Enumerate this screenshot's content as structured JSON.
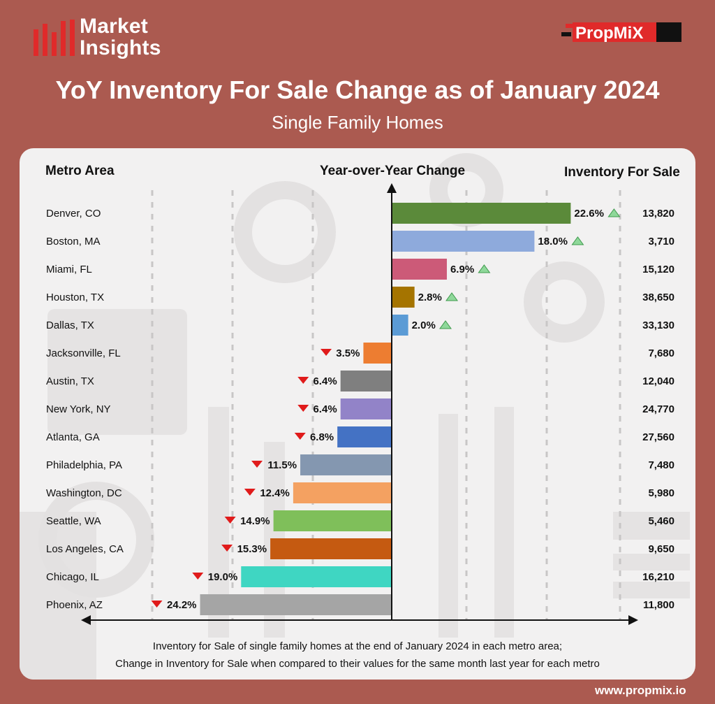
{
  "header": {
    "logo_line1": "Market",
    "logo_line2": "Insights",
    "brand_logo_text": "PropMiX"
  },
  "title": "YoY Inventory For Sale Change as of January 2024",
  "subtitle": "Single Family Homes",
  "columns": {
    "metro": "Metro Area",
    "change": "Year-over-Year Change",
    "inventory": "Inventory For Sale"
  },
  "footer": {
    "line1": "Inventory for Sale of single family homes at the end of January 2024 in each metro area;",
    "line2": "Change in Inventory for Sale when compared to their values for the same month last year for each metro"
  },
  "website": "www.propmix.io",
  "colors": {
    "background": "#ab5a50",
    "panel": "#f2f1f1",
    "up_arrow": "#8fd89a",
    "down_arrow": "#e01b1b",
    "logo_red": "#e02a2a"
  },
  "chart_data": {
    "type": "bar",
    "orientation": "horizontal",
    "value_unit": "%",
    "xlim": [
      -25,
      25
    ],
    "rows": [
      {
        "metro": "Denver, CO",
        "change": 22.6,
        "label": "22.6%",
        "inventory": "13,820",
        "color": "#5b8a3a"
      },
      {
        "metro": "Boston, MA",
        "change": 18.0,
        "label": "18.0%",
        "inventory": "3,710",
        "color": "#8eaadc"
      },
      {
        "metro": "Miami, FL",
        "change": 6.9,
        "label": "6.9%",
        "inventory": "15,120",
        "color": "#cc5a78"
      },
      {
        "metro": "Houston, TX",
        "change": 2.8,
        "label": "2.8%",
        "inventory": "38,650",
        "color": "#a57400"
      },
      {
        "metro": "Dallas, TX",
        "change": 2.0,
        "label": "2.0%",
        "inventory": "33,130",
        "color": "#5b9bd5"
      },
      {
        "metro": "Jacksonville, FL",
        "change": -3.5,
        "label": "3.5%",
        "inventory": "7,680",
        "color": "#ed7d31"
      },
      {
        "metro": "Austin, TX",
        "change": -6.4,
        "label": "6.4%",
        "inventory": "12,040",
        "color": "#7f7f7f"
      },
      {
        "metro": "New York, NY",
        "change": -6.4,
        "label": "6.4%",
        "inventory": "24,770",
        "color": "#9283c8"
      },
      {
        "metro": "Atlanta, GA",
        "change": -6.8,
        "label": "6.8%",
        "inventory": "27,560",
        "color": "#4472c4"
      },
      {
        "metro": "Philadelphia, PA",
        "change": -11.5,
        "label": "11.5%",
        "inventory": "7,480",
        "color": "#8497b0"
      },
      {
        "metro": "Washington, DC",
        "change": -12.4,
        "label": "12.4%",
        "inventory": "5,980",
        "color": "#f4a161"
      },
      {
        "metro": "Seattle, WA",
        "change": -14.9,
        "label": "14.9%",
        "inventory": "5,460",
        "color": "#7fbf5a"
      },
      {
        "metro": "Los Angeles, CA",
        "change": -15.3,
        "label": "15.3%",
        "inventory": "9,650",
        "color": "#c55a11"
      },
      {
        "metro": "Chicago, IL",
        "change": -19.0,
        "label": "19.0%",
        "inventory": "16,210",
        "color": "#3fd6c2"
      },
      {
        "metro": "Phoenix, AZ",
        "change": -24.2,
        "label": "24.2%",
        "inventory": "11,800",
        "color": "#a5a5a5"
      }
    ]
  }
}
